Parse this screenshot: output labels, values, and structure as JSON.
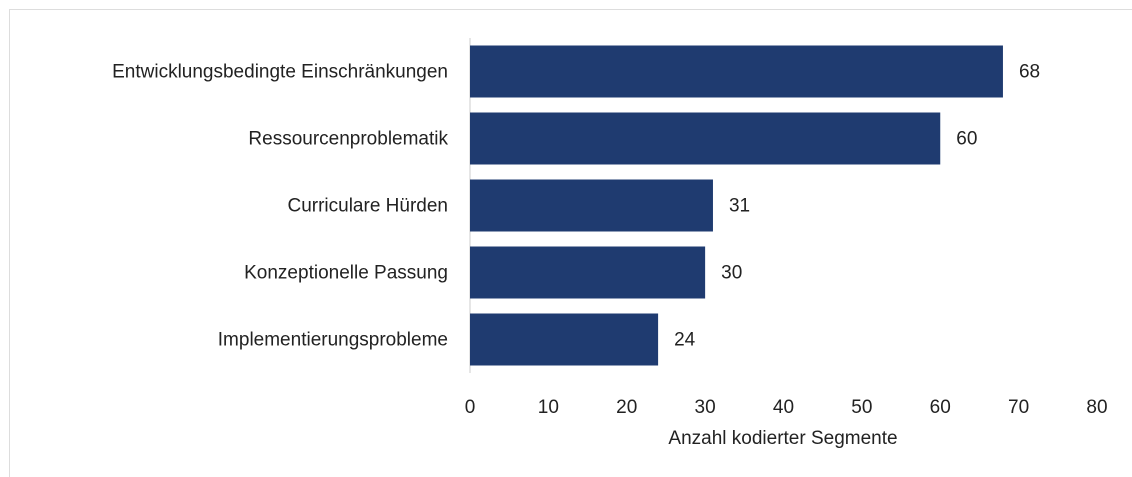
{
  "chart_data": {
    "type": "hbar",
    "categories": [
      "Entwicklungsbedingte Einschränkungen",
      "Ressourcenproblematik",
      "Curriculare Hürden",
      "Konzeptionelle Passung",
      "Implementierungsprobleme"
    ],
    "values": [
      68,
      60,
      31,
      30,
      24
    ],
    "color": "#1f3b70",
    "xlabel": "Anzahl kodierter Segmente",
    "xlim": [
      0,
      80
    ],
    "xticks": [
      0,
      10,
      20,
      30,
      40,
      50,
      60,
      70,
      80
    ]
  }
}
